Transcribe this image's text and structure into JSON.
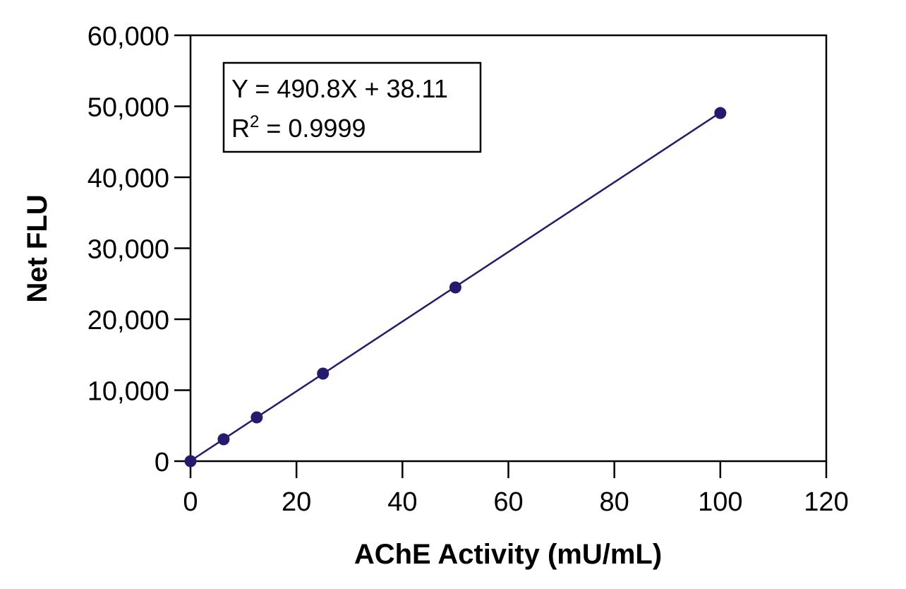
{
  "chart_data": {
    "type": "scatter",
    "title": "",
    "xlabel": "AChE Activity (mU/mL)",
    "ylabel": "Net FLU",
    "xlim": [
      0,
      120
    ],
    "ylim": [
      0,
      60000
    ],
    "x_ticks": [
      0,
      20,
      40,
      60,
      80,
      100,
      120
    ],
    "y_ticks": [
      0,
      10000,
      20000,
      30000,
      40000,
      50000,
      60000
    ],
    "x_tick_labels": [
      "0",
      "20",
      "40",
      "60",
      "80",
      "100",
      "120"
    ],
    "y_tick_labels": [
      "0",
      "10,000",
      "20,000",
      "30,000",
      "40,000",
      "50,000",
      "60,000"
    ],
    "grid": false,
    "series": [
      {
        "x": [
          0,
          6.25,
          12.5,
          25,
          50,
          100
        ],
        "y": [
          0,
          3080,
          6170,
          12340,
          24480,
          49050
        ],
        "color": "#241a6e"
      }
    ],
    "fit": {
      "slope": 490.8,
      "intercept": 38.11,
      "color": "#241a6e"
    },
    "annotation": {
      "equation": "Y = 490.8X + 38.11",
      "r2_prefix": "R",
      "r2_sup": "2",
      "r2_value": " = 0.9999",
      "placement": "top-left"
    }
  }
}
